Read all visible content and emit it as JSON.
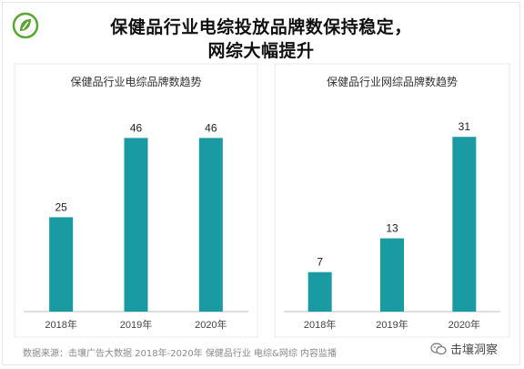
{
  "title": {
    "line1": "保健品行业电综投放品牌数保持稳定，",
    "line2": "网综大幅提升"
  },
  "colors": {
    "bar": "#1a9aa3",
    "axis": "#bfbfbf",
    "logo": "#5ba632"
  },
  "chart_data": [
    {
      "type": "bar",
      "title": "保健品行业电综品牌数趋势",
      "categories": [
        "2018年",
        "2019年",
        "2020年"
      ],
      "values": [
        25,
        46,
        46
      ],
      "xlabel": "",
      "ylabel": "",
      "ylim": [
        0,
        56
      ],
      "grid": false
    },
    {
      "type": "bar",
      "title": "保健品行业网综品牌数趋势",
      "categories": [
        "2018年",
        "2019年",
        "2020年"
      ],
      "values": [
        7,
        13,
        31
      ],
      "xlabel": "",
      "ylabel": "",
      "ylim": [
        0,
        37.5
      ],
      "grid": false
    }
  ],
  "footer": {
    "source": "数据来源：击壤广告大数据 2018年-2020年 保健品行业 电综&网综 内容监播"
  },
  "brand": {
    "name": "击壤洞察",
    "icon": "wechat-icon"
  }
}
